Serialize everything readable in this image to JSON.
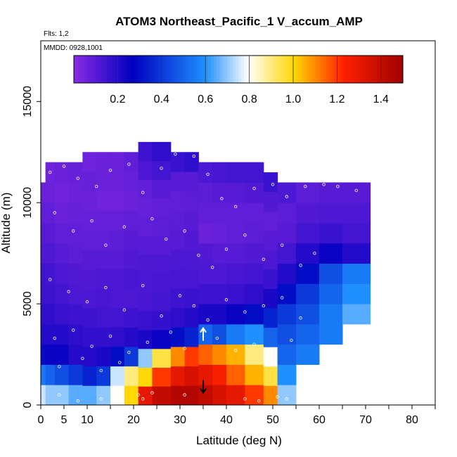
{
  "chart_data": {
    "type": "heatmap",
    "title": "ATOM3 Northeast_Pacific_1 V_accum_AMP",
    "flights_label": "Flts: 1,2",
    "dates_label": "MMDD: 0928,1001",
    "xlabel": "Latitude (deg N)",
    "ylabel": "Altitude (m)",
    "xlim": [
      0,
      85
    ],
    "ylim": [
      0,
      18000
    ],
    "x_ticks": [
      0,
      5,
      10,
      20,
      30,
      40,
      50,
      60,
      70,
      80
    ],
    "y_ticks": [
      0,
      5000,
      10000,
      15000
    ],
    "colorbar": {
      "min": 0.0,
      "max": 1.5,
      "ticks": [
        "0.2",
        "0.4",
        "0.6",
        "0.8",
        "1.0",
        "1.2",
        "1.4"
      ],
      "tick_values": [
        0.2,
        0.4,
        0.6,
        0.8,
        1.0,
        1.2,
        1.4
      ]
    },
    "colors": {
      "low": "#8a2be2",
      "mid_low": "#0000c0",
      "mid": "#1e90ff",
      "neutral": "#ffffff",
      "mid_high": "#ffd700",
      "high": "#ff2000",
      "max": "#a00000"
    },
    "columns": [
      {
        "lat_range": [
          0,
          1
        ],
        "z_range": [
          0,
          11000
        ],
        "v": [
          0.75,
          0.55,
          0.3,
          0.2,
          0.18,
          0.16,
          0.15,
          0.12,
          0.1,
          0.08,
          0.06
        ]
      },
      {
        "lat_range": [
          1,
          3
        ],
        "z_range": [
          0,
          12000
        ],
        "v": [
          0.7,
          0.5,
          0.25,
          0.2,
          0.18,
          0.15,
          0.14,
          0.12,
          0.1,
          0.08,
          0.06,
          0.05
        ]
      },
      {
        "lat_range": [
          3,
          6
        ],
        "z_range": [
          0,
          12000
        ],
        "v": [
          0.7,
          0.45,
          0.25,
          0.2,
          0.16,
          0.14,
          0.12,
          0.1,
          0.08,
          0.06,
          0.05,
          0.06
        ]
      },
      {
        "lat_range": [
          6,
          9
        ],
        "z_range": [
          0,
          12000
        ],
        "v": [
          0.65,
          0.4,
          0.2,
          0.18,
          0.15,
          0.12,
          0.11,
          0.09,
          0.08,
          0.07,
          0.06,
          0.07
        ]
      },
      {
        "lat_range": [
          9,
          12
        ],
        "z_range": [
          0,
          12500
        ],
        "v": [
          0.65,
          0.35,
          0.2,
          0.17,
          0.15,
          0.12,
          0.11,
          0.1,
          0.08,
          0.07,
          0.06,
          0.07,
          0.05
        ]
      },
      {
        "lat_range": [
          12,
          15
        ],
        "z_range": [
          0,
          12500
        ],
        "v": [
          0.7,
          0.4,
          0.22,
          0.17,
          0.14,
          0.13,
          0.12,
          0.1,
          0.08,
          0.07,
          0.05,
          0.06,
          0.06
        ]
      },
      {
        "lat_range": [
          15,
          18
        ],
        "z_range": [
          0,
          12500
        ],
        "v": [
          0.8,
          0.75,
          0.3,
          0.18,
          0.14,
          0.12,
          0.12,
          0.1,
          0.09,
          0.07,
          0.05,
          0.06,
          0.06
        ]
      },
      {
        "lat_range": [
          18,
          21
        ],
        "z_range": [
          0,
          12500
        ],
        "v": [
          1.0,
          0.9,
          0.4,
          0.2,
          0.15,
          0.12,
          0.13,
          0.11,
          0.1,
          0.08,
          0.06,
          0.07,
          0.08
        ]
      },
      {
        "lat_range": [
          21,
          24
        ],
        "z_range": [
          0,
          13000
        ],
        "v": [
          1.3,
          1.0,
          0.7,
          0.22,
          0.16,
          0.13,
          0.12,
          0.12,
          0.1,
          0.08,
          0.07,
          0.08,
          0.12,
          0.15
        ]
      },
      {
        "lat_range": [
          24,
          28
        ],
        "z_range": [
          0,
          13000
        ],
        "v": [
          1.4,
          1.2,
          0.95,
          0.25,
          0.17,
          0.14,
          0.13,
          0.12,
          0.1,
          0.09,
          0.08,
          0.1,
          0.14,
          0.18
        ]
      },
      {
        "lat_range": [
          28,
          31
        ],
        "z_range": [
          0,
          12500
        ],
        "v": [
          1.45,
          1.3,
          1.1,
          0.3,
          0.18,
          0.15,
          0.13,
          0.12,
          0.1,
          0.09,
          0.08,
          0.1,
          0.16
        ]
      },
      {
        "lat_range": [
          31,
          34
        ],
        "z_range": [
          0,
          12500
        ],
        "v": [
          1.45,
          1.35,
          1.2,
          0.35,
          0.2,
          0.16,
          0.13,
          0.12,
          0.11,
          0.1,
          0.09,
          0.1,
          0.18
        ]
      },
      {
        "lat_range": [
          34,
          37
        ],
        "z_range": [
          0,
          12000
        ],
        "v": [
          1.4,
          1.3,
          1.15,
          0.5,
          0.22,
          0.15,
          0.12,
          0.11,
          0.06,
          0.08,
          0.09,
          0.12
        ]
      },
      {
        "lat_range": [
          37,
          40
        ],
        "z_range": [
          0,
          12000
        ],
        "v": [
          1.35,
          1.25,
          1.1,
          0.45,
          0.22,
          0.15,
          0.12,
          0.1,
          0.07,
          0.08,
          0.1,
          0.13
        ]
      },
      {
        "lat_range": [
          40,
          44
        ],
        "z_range": [
          0,
          12000
        ],
        "v": [
          1.3,
          1.15,
          1.05,
          0.55,
          0.25,
          0.16,
          0.13,
          0.1,
          0.08,
          0.08,
          0.1,
          0.14
        ]
      },
      {
        "lat_range": [
          44,
          48
        ],
        "z_range": [
          0,
          12000
        ],
        "v": [
          1.2,
          1.05,
          0.9,
          0.6,
          0.3,
          0.18,
          0.14,
          0.11,
          0.09,
          0.08,
          0.11,
          0.14
        ]
      },
      {
        "lat_range": [
          48,
          51
        ],
        "z_range": [
          0,
          11500
        ],
        "v": [
          1.1,
          0.95,
          0.8,
          0.5,
          0.35,
          0.22,
          0.16,
          0.12,
          0.1,
          0.08,
          0.11,
          0.16
        ]
      },
      {
        "lat_range": [
          51,
          55
        ],
        "z_range": [
          0,
          11000
        ],
        "v": [
          0.7,
          0.6,
          0.5,
          0.45,
          0.4,
          0.3,
          0.2,
          0.14,
          0.1,
          0.09,
          0.12
        ]
      },
      {
        "lat_range": [
          55,
          60
        ],
        "z_range": [
          2000,
          11000
        ],
        "v": [
          0.55,
          0.5,
          0.45,
          0.4,
          0.3,
          0.2,
          0.14,
          0.11,
          0.09
        ]
      },
      {
        "lat_range": [
          60,
          65
        ],
        "z_range": [
          3000,
          11000
        ],
        "v": [
          0.55,
          0.55,
          0.5,
          0.45,
          0.25,
          0.16,
          0.12,
          0.1
        ]
      },
      {
        "lat_range": [
          65,
          71
        ],
        "z_range": [
          4000,
          11000
        ],
        "v": [
          0.65,
          0.6,
          0.55,
          0.2,
          0.14,
          0.12,
          0.1
        ]
      }
    ],
    "markers": [
      {
        "lat": 35,
        "alt": 600,
        "direction": "down",
        "color": "#000000"
      },
      {
        "lat": 35,
        "alt": 3800,
        "direction": "up",
        "color": "#ffffff"
      }
    ],
    "sample_points": [
      [
        2,
        11500
      ],
      [
        5,
        11800
      ],
      [
        8,
        11200
      ],
      [
        12,
        10800
      ],
      [
        15,
        11600
      ],
      [
        19,
        11900
      ],
      [
        22,
        10500
      ],
      [
        26,
        11700
      ],
      [
        29,
        12400
      ],
      [
        33,
        12300
      ],
      [
        36,
        11400
      ],
      [
        39,
        10200
      ],
      [
        42,
        9800
      ],
      [
        46,
        10700
      ],
      [
        50,
        10900
      ],
      [
        53,
        10300
      ],
      [
        57,
        10800
      ],
      [
        61,
        10900
      ],
      [
        64,
        10800
      ],
      [
        68,
        10600
      ],
      [
        3,
        9500
      ],
      [
        7,
        8600
      ],
      [
        11,
        9100
      ],
      [
        14,
        7900
      ],
      [
        18,
        8800
      ],
      [
        24,
        9200
      ],
      [
        27,
        8200
      ],
      [
        31,
        8600
      ],
      [
        34,
        7400
      ],
      [
        37,
        6800
      ],
      [
        40,
        7700
      ],
      [
        44,
        8400
      ],
      [
        48,
        7200
      ],
      [
        52,
        7900
      ],
      [
        56,
        6900
      ],
      [
        59,
        7500
      ],
      [
        2,
        6200
      ],
      [
        6,
        5600
      ],
      [
        10,
        5100
      ],
      [
        14,
        5800
      ],
      [
        18,
        4700
      ],
      [
        22,
        5900
      ],
      [
        26,
        4400
      ],
      [
        30,
        5400
      ],
      [
        33,
        4900
      ],
      [
        36,
        4200
      ],
      [
        40,
        5200
      ],
      [
        44,
        4600
      ],
      [
        48,
        4900
      ],
      [
        52,
        5300
      ],
      [
        56,
        4300
      ],
      [
        3,
        3300
      ],
      [
        7,
        3700
      ],
      [
        11,
        2900
      ],
      [
        15,
        3400
      ],
      [
        19,
        2600
      ],
      [
        23,
        3100
      ],
      [
        28,
        3600
      ],
      [
        31,
        2800
      ],
      [
        38,
        3300
      ],
      [
        42,
        2700
      ],
      [
        46,
        3000
      ],
      [
        50,
        2500
      ],
      [
        54,
        3200
      ],
      [
        4,
        1900
      ],
      [
        9,
        2300
      ],
      [
        13,
        1700
      ],
      [
        17,
        2100
      ],
      [
        21,
        500
      ],
      [
        22,
        300
      ],
      [
        24,
        600
      ],
      [
        31,
        500
      ],
      [
        44,
        300
      ],
      [
        47,
        200
      ],
      [
        51,
        400
      ],
      [
        53,
        300
      ],
      [
        4,
        500
      ],
      [
        8,
        200
      ],
      [
        13,
        300
      ],
      [
        16,
        200
      ]
    ]
  }
}
